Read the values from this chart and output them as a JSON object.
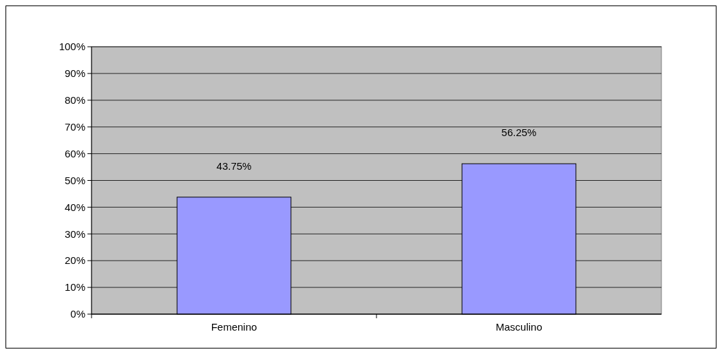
{
  "chart_data": {
    "type": "bar",
    "categories": [
      "Femenino",
      "Masculino"
    ],
    "values": [
      43.75,
      56.25
    ],
    "value_labels": [
      "43.75%",
      "56.25%"
    ],
    "color": "#9999ff",
    "ylim": [
      0,
      100
    ],
    "yticks": [
      {
        "value": 0,
        "label": "0%"
      },
      {
        "value": 10,
        "label": "10%"
      },
      {
        "value": 20,
        "label": "20%"
      },
      {
        "value": 30,
        "label": "30%"
      },
      {
        "value": 40,
        "label": "40%"
      },
      {
        "value": 50,
        "label": "50%"
      },
      {
        "value": 60,
        "label": "60%"
      },
      {
        "value": 70,
        "label": "70%"
      },
      {
        "value": 80,
        "label": "80%"
      },
      {
        "value": 90,
        "label": "90%"
      },
      {
        "value": 100,
        "label": "100%"
      }
    ],
    "grid": "y"
  }
}
